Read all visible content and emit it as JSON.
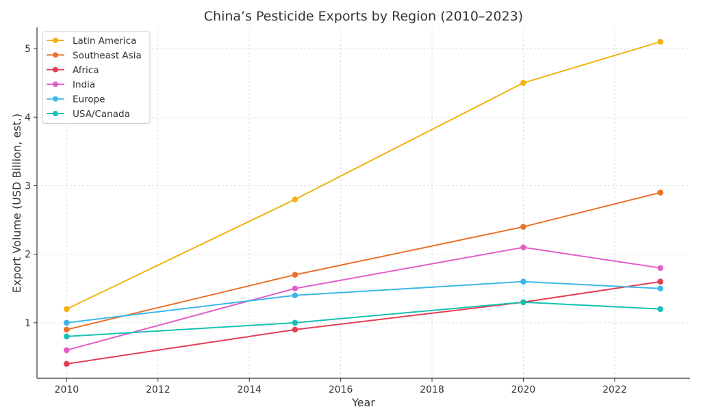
{
  "chart_data": {
    "type": "line",
    "title": "China’s Pesticide Exports by Region (2010–2023)",
    "xlabel": "Year",
    "ylabel": "Export Volume (USD Billion, est.)",
    "x": [
      2010,
      2015,
      2020,
      2023
    ],
    "xlim": [
      2009.35,
      2023.65
    ],
    "ylim": [
      0.19,
      5.31
    ],
    "xticks": [
      2010,
      2012,
      2014,
      2016,
      2018,
      2020,
      2022
    ],
    "yticks": [
      1,
      2,
      3,
      4,
      5
    ],
    "grid": true,
    "legend_position": "top-left",
    "series": [
      {
        "name": "Latin America",
        "color": "#f4b10f",
        "values": [
          1.2,
          2.8,
          4.5,
          5.1
        ]
      },
      {
        "name": "Southeast Asia",
        "color": "#ea7129",
        "values": [
          0.9,
          1.7,
          2.4,
          2.9
        ]
      },
      {
        "name": "Africa",
        "color": "#e33f55",
        "values": [
          0.4,
          0.9,
          1.3,
          1.6
        ]
      },
      {
        "name": "India",
        "color": "#e35fc8",
        "values": [
          0.6,
          1.5,
          2.1,
          1.8
        ]
      },
      {
        "name": "Europe",
        "color": "#3bb7ea",
        "values": [
          1.0,
          1.4,
          1.6,
          1.5
        ]
      },
      {
        "name": "USA/Canada",
        "color": "#17c1b2",
        "values": [
          0.8,
          1.0,
          1.3,
          1.2
        ]
      }
    ]
  }
}
